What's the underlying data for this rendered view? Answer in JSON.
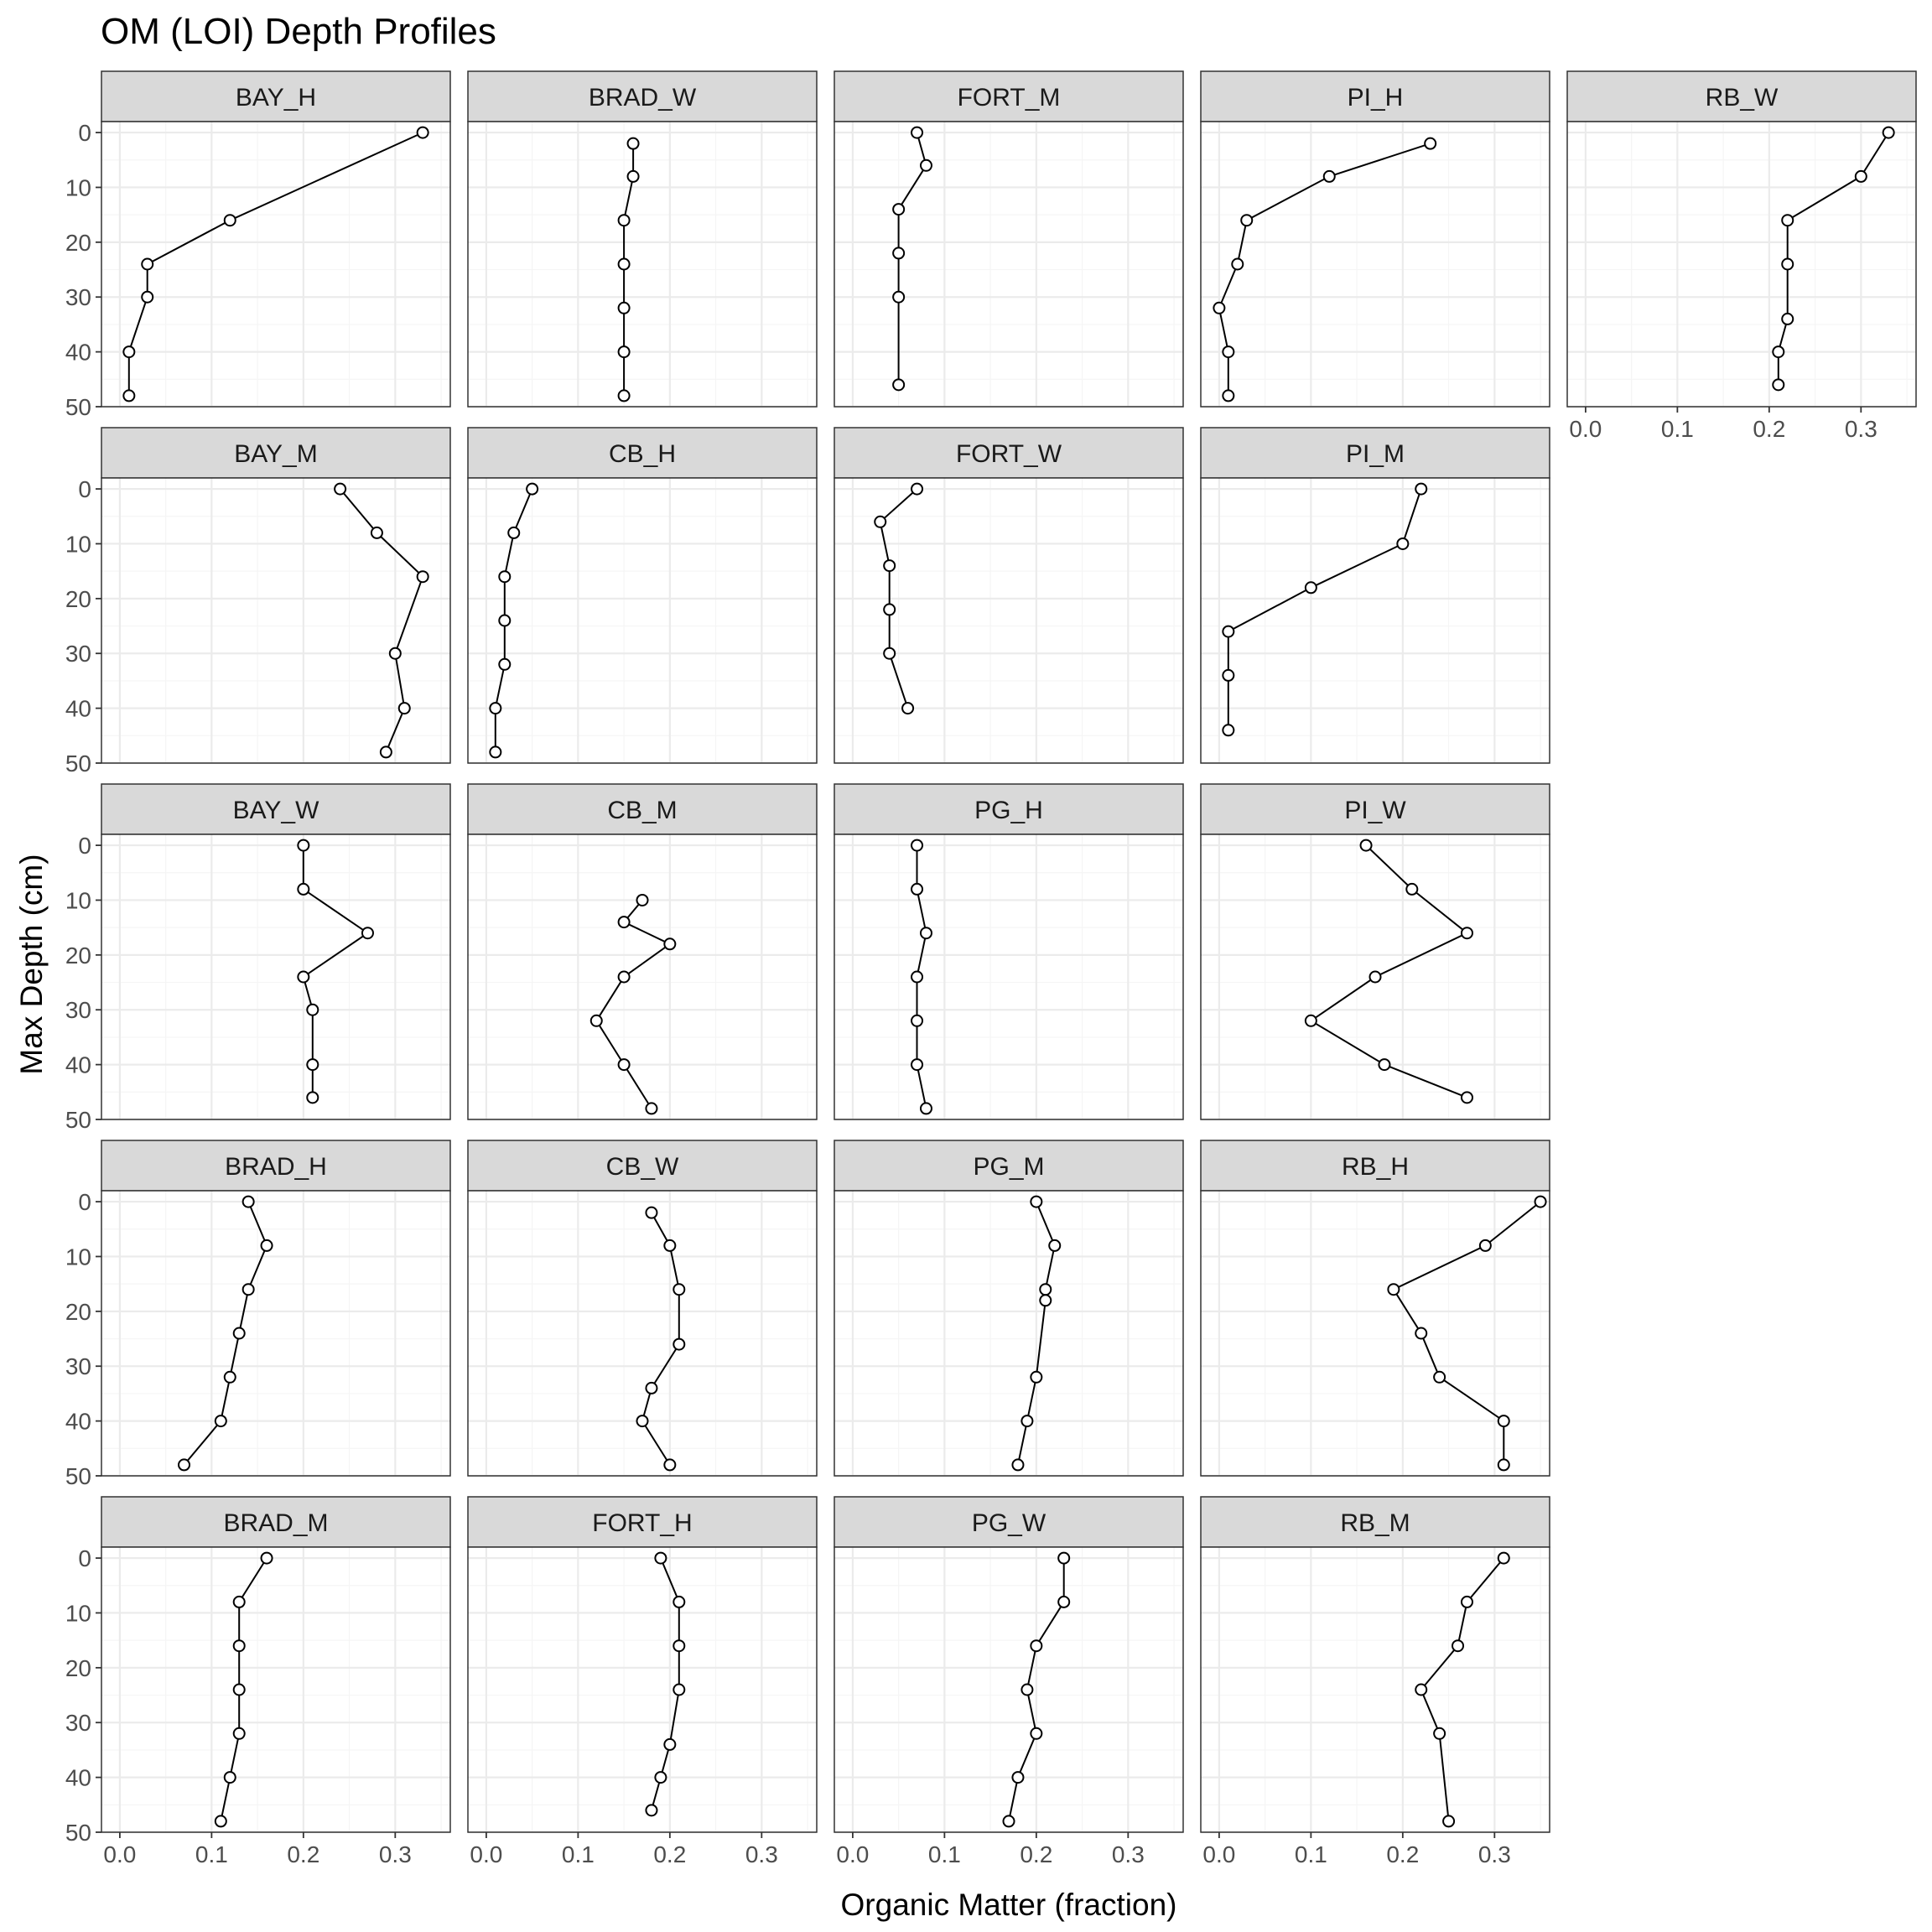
{
  "chart_data": {
    "type": "line",
    "title": "OM (LOI) Depth Profiles",
    "xlabel": "Organic Matter (fraction)",
    "ylabel": "Max Depth (cm)",
    "xlim": [
      -0.02,
      0.36
    ],
    "ylim": [
      50,
      -2
    ],
    "y_reversed": true,
    "x_ticks": [
      "0.0",
      "0.1",
      "0.2",
      "0.3"
    ],
    "y_ticks": [
      "0",
      "10",
      "20",
      "30",
      "40",
      "50"
    ],
    "grid": true,
    "markers": "open-circle",
    "colors": {
      "line": "#000000",
      "strip_fill": "#d9d9d9",
      "panel_border": "#333333",
      "grid_major": "#ebebeb",
      "grid_minor": "#f5f5f5",
      "tick_label": "#4d4d4d"
    },
    "panels": [
      {
        "name": "BAY_H",
        "row": 0,
        "col": 0,
        "x_axis": false,
        "points": [
          [
            0.33,
            0
          ],
          [
            0.12,
            16
          ],
          [
            0.03,
            24
          ],
          [
            0.03,
            30
          ],
          [
            0.01,
            40
          ],
          [
            0.01,
            48
          ]
        ]
      },
      {
        "name": "BRAD_W",
        "row": 0,
        "col": 1,
        "x_axis": false,
        "points": [
          [
            0.16,
            2
          ],
          [
            0.16,
            8
          ],
          [
            0.15,
            16
          ],
          [
            0.15,
            24
          ],
          [
            0.15,
            32
          ],
          [
            0.15,
            40
          ],
          [
            0.15,
            48
          ]
        ]
      },
      {
        "name": "FORT_M",
        "row": 0,
        "col": 2,
        "x_axis": false,
        "points": [
          [
            0.07,
            0
          ],
          [
            0.08,
            6
          ],
          [
            0.05,
            14
          ],
          [
            0.05,
            22
          ],
          [
            0.05,
            30
          ],
          [
            0.05,
            46
          ]
        ]
      },
      {
        "name": "PI_H",
        "row": 0,
        "col": 3,
        "x_axis": false,
        "points": [
          [
            0.23,
            2
          ],
          [
            0.12,
            8
          ],
          [
            0.03,
            16
          ],
          [
            0.02,
            24
          ],
          [
            0.0,
            32
          ],
          [
            0.01,
            40
          ],
          [
            0.01,
            48
          ]
        ]
      },
      {
        "name": "RB_W",
        "row": 0,
        "col": 4,
        "x_axis": true,
        "points": [
          [
            0.33,
            0
          ],
          [
            0.3,
            8
          ],
          [
            0.22,
            16
          ],
          [
            0.22,
            24
          ],
          [
            0.22,
            34
          ],
          [
            0.21,
            40
          ],
          [
            0.21,
            46
          ]
        ]
      },
      {
        "name": "BAY_M",
        "row": 1,
        "col": 0,
        "x_axis": false,
        "points": [
          [
            0.24,
            0
          ],
          [
            0.28,
            8
          ],
          [
            0.33,
            16
          ],
          [
            0.3,
            30
          ],
          [
            0.31,
            40
          ],
          [
            0.29,
            48
          ]
        ]
      },
      {
        "name": "CB_H",
        "row": 1,
        "col": 1,
        "x_axis": false,
        "points": [
          [
            0.05,
            0
          ],
          [
            0.03,
            8
          ],
          [
            0.02,
            16
          ],
          [
            0.02,
            24
          ],
          [
            0.02,
            32
          ],
          [
            0.01,
            40
          ],
          [
            0.01,
            48
          ]
        ]
      },
      {
        "name": "FORT_W",
        "row": 1,
        "col": 2,
        "x_axis": false,
        "points": [
          [
            0.07,
            0
          ],
          [
            0.03,
            6
          ],
          [
            0.04,
            14
          ],
          [
            0.04,
            22
          ],
          [
            0.04,
            30
          ],
          [
            0.06,
            40
          ]
        ]
      },
      {
        "name": "PI_M",
        "row": 1,
        "col": 3,
        "x_axis": false,
        "points": [
          [
            0.22,
            0
          ],
          [
            0.2,
            10
          ],
          [
            0.1,
            18
          ],
          [
            0.01,
            26
          ],
          [
            0.01,
            34
          ],
          [
            0.01,
            44
          ]
        ]
      },
      {
        "name": "BAY_W",
        "row": 2,
        "col": 0,
        "x_axis": false,
        "points": [
          [
            0.2,
            0
          ],
          [
            0.2,
            8
          ],
          [
            0.27,
            16
          ],
          [
            0.2,
            24
          ],
          [
            0.21,
            30
          ],
          [
            0.21,
            40
          ],
          [
            0.21,
            46
          ]
        ]
      },
      {
        "name": "CB_M",
        "row": 2,
        "col": 1,
        "x_axis": false,
        "points": [
          [
            0.17,
            10
          ],
          [
            0.15,
            14
          ],
          [
            0.2,
            18
          ],
          [
            0.15,
            24
          ],
          [
            0.12,
            32
          ],
          [
            0.15,
            40
          ],
          [
            0.18,
            48
          ]
        ]
      },
      {
        "name": "PG_H",
        "row": 2,
        "col": 2,
        "x_axis": false,
        "points": [
          [
            0.07,
            0
          ],
          [
            0.07,
            8
          ],
          [
            0.08,
            16
          ],
          [
            0.07,
            24
          ],
          [
            0.07,
            32
          ],
          [
            0.07,
            40
          ],
          [
            0.08,
            48
          ]
        ]
      },
      {
        "name": "PI_W",
        "row": 2,
        "col": 3,
        "x_axis": false,
        "points": [
          [
            0.16,
            0
          ],
          [
            0.21,
            8
          ],
          [
            0.27,
            16
          ],
          [
            0.17,
            24
          ],
          [
            0.1,
            32
          ],
          [
            0.18,
            40
          ],
          [
            0.27,
            46
          ]
        ]
      },
      {
        "name": "BRAD_H",
        "row": 3,
        "col": 0,
        "x_axis": false,
        "points": [
          [
            0.14,
            0
          ],
          [
            0.16,
            8
          ],
          [
            0.14,
            16
          ],
          [
            0.13,
            24
          ],
          [
            0.12,
            32
          ],
          [
            0.11,
            40
          ],
          [
            0.07,
            48
          ]
        ]
      },
      {
        "name": "CB_W",
        "row": 3,
        "col": 1,
        "x_axis": false,
        "points": [
          [
            0.18,
            2
          ],
          [
            0.2,
            8
          ],
          [
            0.21,
            16
          ],
          [
            0.21,
            26
          ],
          [
            0.18,
            34
          ],
          [
            0.17,
            40
          ],
          [
            0.2,
            48
          ]
        ]
      },
      {
        "name": "PG_M",
        "row": 3,
        "col": 2,
        "x_axis": false,
        "points": [
          [
            0.2,
            0
          ],
          [
            0.22,
            8
          ],
          [
            0.21,
            16
          ],
          [
            0.21,
            18
          ],
          [
            0.2,
            32
          ],
          [
            0.19,
            40
          ],
          [
            0.18,
            48
          ]
        ]
      },
      {
        "name": "RB_H",
        "row": 3,
        "col": 3,
        "x_axis": false,
        "points": [
          [
            0.35,
            0
          ],
          [
            0.29,
            8
          ],
          [
            0.19,
            16
          ],
          [
            0.22,
            24
          ],
          [
            0.24,
            32
          ],
          [
            0.31,
            40
          ],
          [
            0.31,
            48
          ]
        ]
      },
      {
        "name": "BRAD_M",
        "row": 4,
        "col": 0,
        "x_axis": true,
        "points": [
          [
            0.16,
            0
          ],
          [
            0.13,
            8
          ],
          [
            0.13,
            16
          ],
          [
            0.13,
            24
          ],
          [
            0.13,
            32
          ],
          [
            0.12,
            40
          ],
          [
            0.11,
            48
          ]
        ]
      },
      {
        "name": "FORT_H",
        "row": 4,
        "col": 1,
        "x_axis": true,
        "points": [
          [
            0.19,
            0
          ],
          [
            0.21,
            8
          ],
          [
            0.21,
            16
          ],
          [
            0.21,
            24
          ],
          [
            0.2,
            34
          ],
          [
            0.19,
            40
          ],
          [
            0.18,
            46
          ]
        ]
      },
      {
        "name": "PG_W",
        "row": 4,
        "col": 2,
        "x_axis": true,
        "points": [
          [
            0.23,
            0
          ],
          [
            0.23,
            8
          ],
          [
            0.2,
            16
          ],
          [
            0.19,
            24
          ],
          [
            0.2,
            32
          ],
          [
            0.18,
            40
          ],
          [
            0.17,
            48
          ]
        ]
      },
      {
        "name": "RB_M",
        "row": 4,
        "col": 3,
        "x_axis": true,
        "points": [
          [
            0.31,
            0
          ],
          [
            0.27,
            8
          ],
          [
            0.26,
            16
          ],
          [
            0.22,
            24
          ],
          [
            0.24,
            32
          ],
          [
            0.25,
            48
          ]
        ]
      }
    ]
  }
}
